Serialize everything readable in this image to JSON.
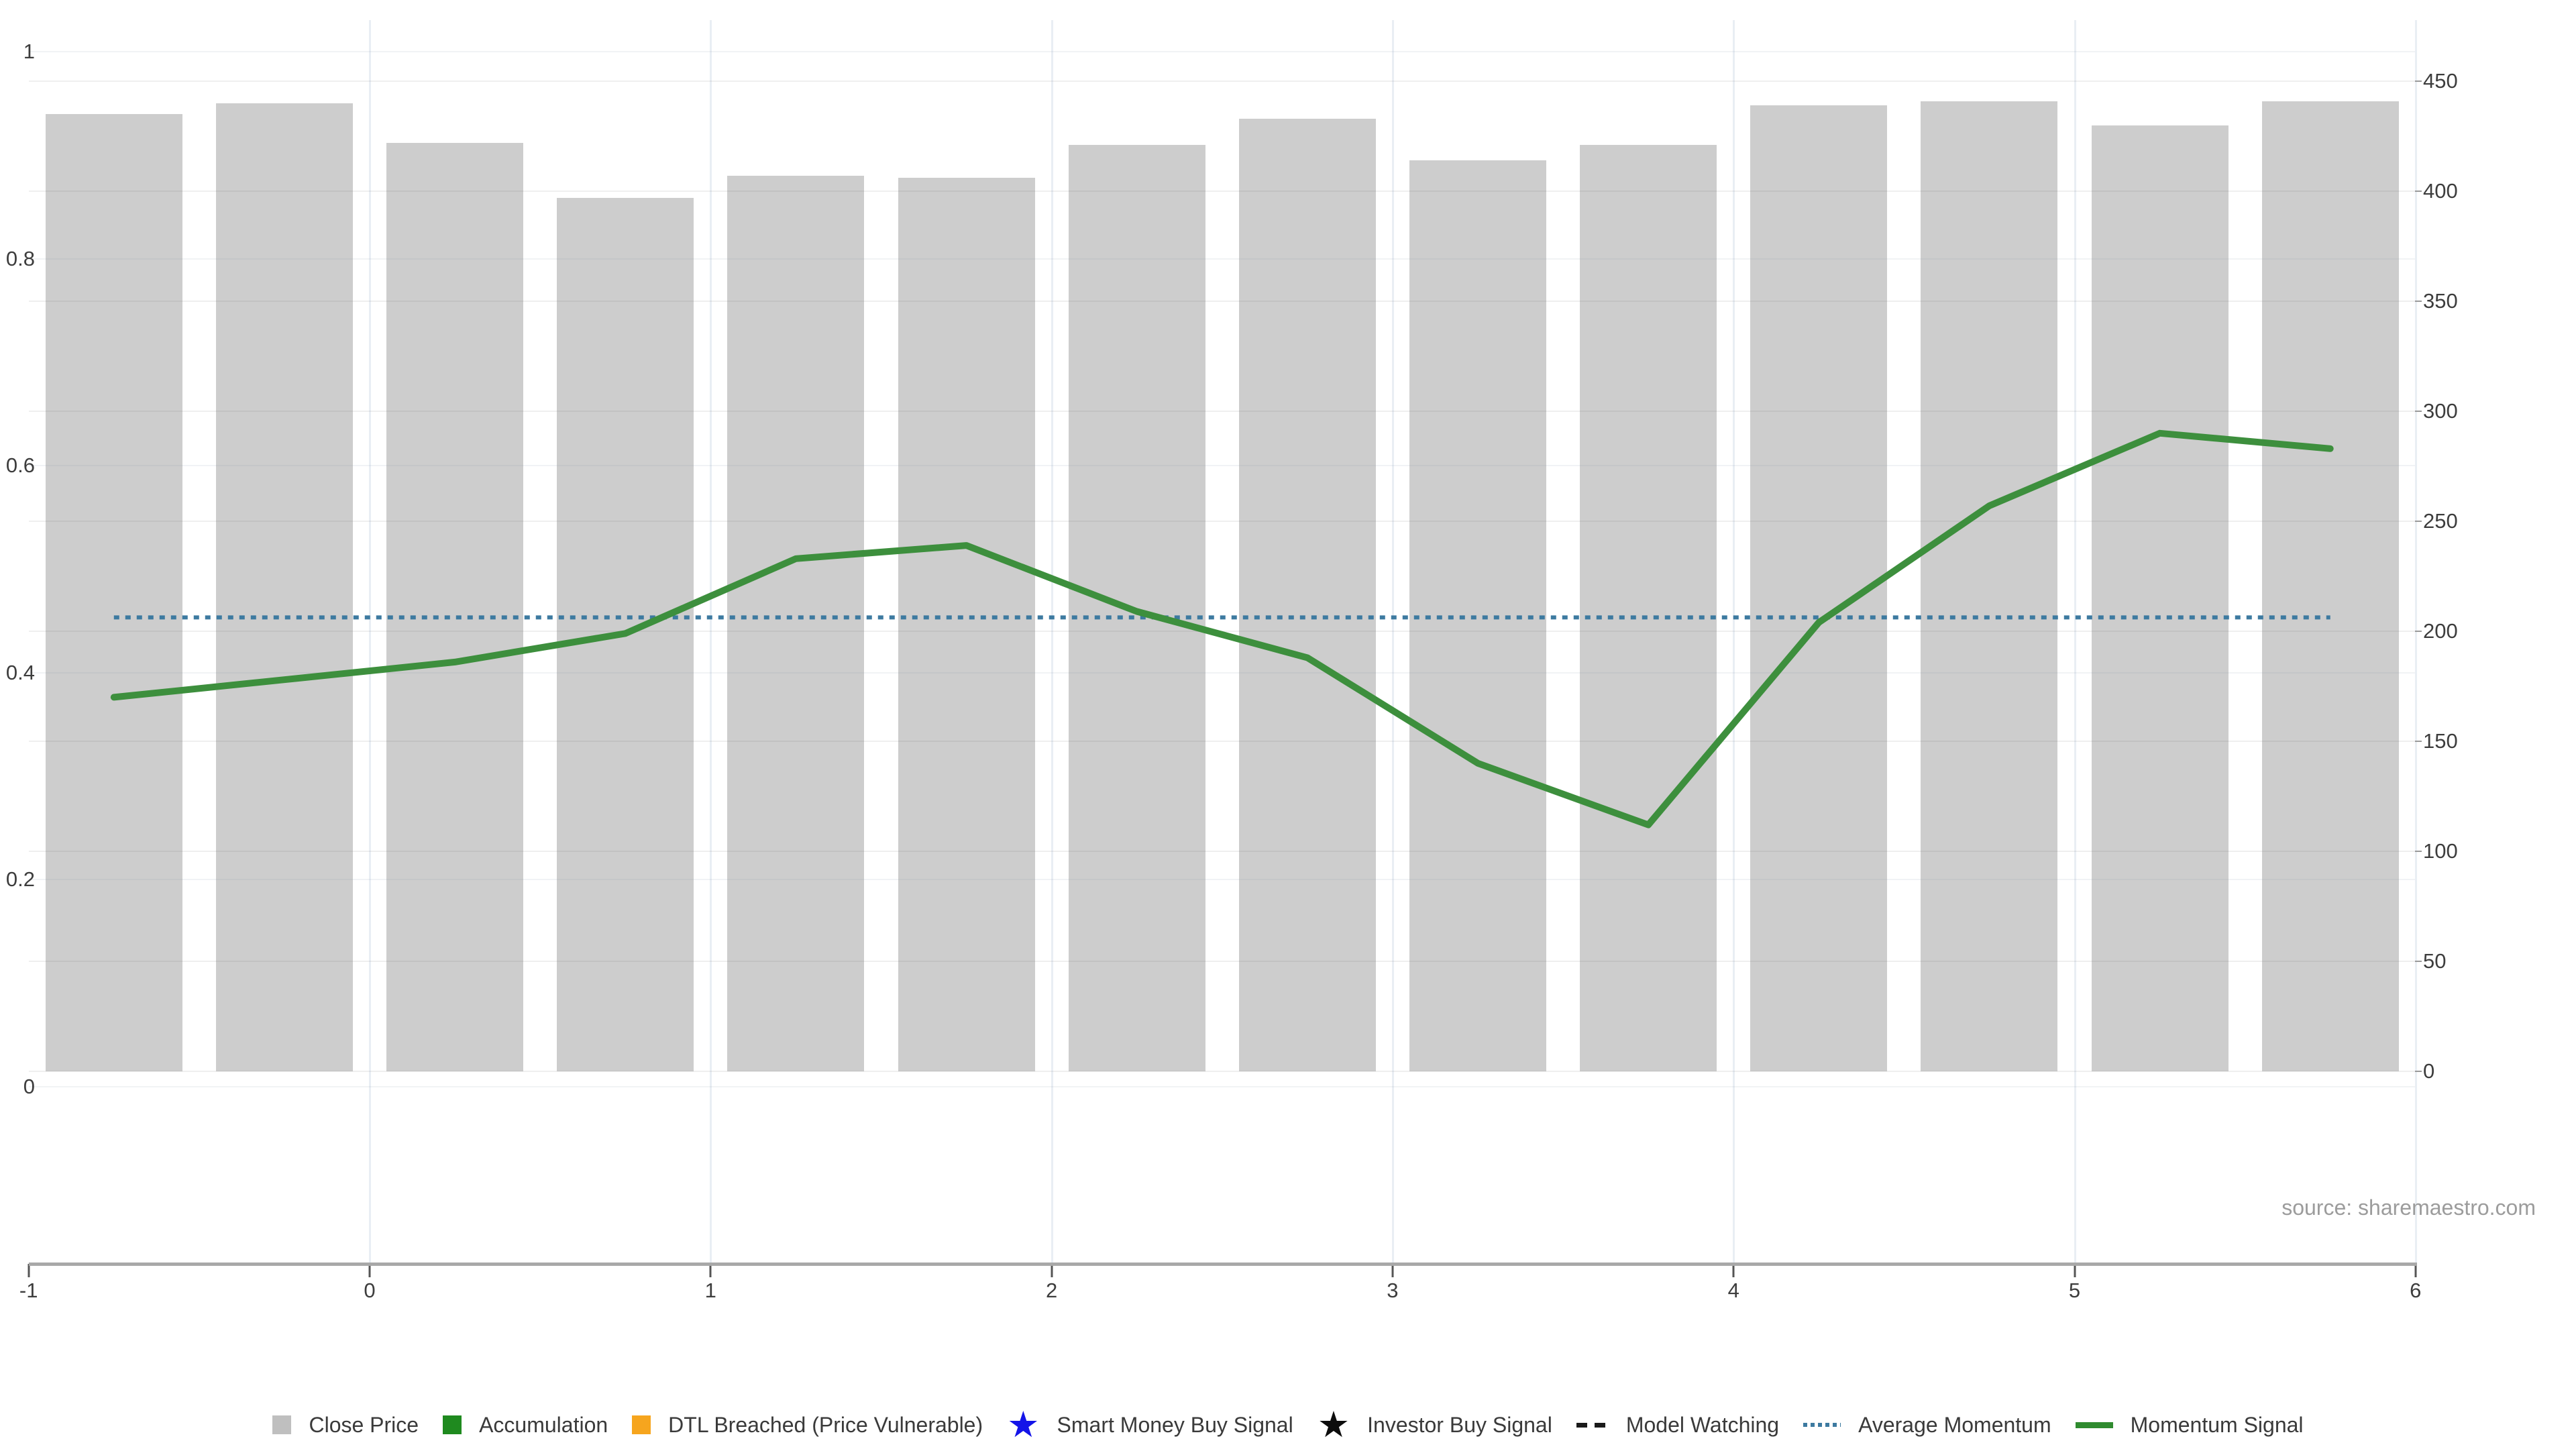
{
  "source_note": "source: sharemaestro.com",
  "chart_data": {
    "type": "bar",
    "title": "",
    "x": [
      -0.75,
      -0.25,
      0.25,
      0.75,
      1.25,
      1.75,
      2.25,
      2.75,
      3.25,
      3.75,
      4.25,
      4.75,
      5.25,
      5.75
    ],
    "series": [
      {
        "name": "Close Price",
        "kind": "bar",
        "axis": "right",
        "color": "#cdcdcd",
        "values": [
          435,
          440,
          422,
          397,
          407,
          406,
          421,
          433,
          414,
          421,
          439,
          441,
          430,
          441
        ]
      },
      {
        "name": "Momentum Signal",
        "kind": "line",
        "axis": "right",
        "color": "#3d8f3d",
        "values": [
          170,
          178,
          186,
          199,
          233,
          239,
          209,
          188,
          140,
          112,
          204,
          257,
          290,
          283
        ]
      },
      {
        "name": "Average Momentum",
        "kind": "dotted-line",
        "axis": "right",
        "color": "#3d7aa0",
        "constant": 206.3
      }
    ],
    "x_axis": {
      "range": [
        -1,
        6
      ],
      "ticks": [
        {
          "v": -1,
          "label": "-1"
        },
        {
          "v": 0,
          "label": "0"
        },
        {
          "v": 1,
          "label": "1"
        },
        {
          "v": 2,
          "label": "2"
        },
        {
          "v": 3,
          "label": "3"
        },
        {
          "v": 4,
          "label": "4"
        },
        {
          "v": 5,
          "label": "5"
        },
        {
          "v": 6,
          "label": "6"
        }
      ]
    },
    "left_axis": {
      "range": [
        0,
        1
      ],
      "ticks": [
        {
          "v": 0,
          "label": "0"
        },
        {
          "v": 0.2,
          "label": "0.2"
        },
        {
          "v": 0.4,
          "label": "0.4"
        },
        {
          "v": 0.6,
          "label": "0.6"
        },
        {
          "v": 0.8,
          "label": "0.8"
        },
        {
          "v": 1,
          "label": "1"
        }
      ]
    },
    "right_axis": {
      "range": [
        0,
        450
      ],
      "ticks": [
        {
          "v": 0,
          "label": "0"
        },
        {
          "v": 50,
          "label": "50"
        },
        {
          "v": 100,
          "label": "100"
        },
        {
          "v": 150,
          "label": "150"
        },
        {
          "v": 200,
          "label": "200"
        },
        {
          "v": 250,
          "label": "250"
        },
        {
          "v": 300,
          "label": "300"
        },
        {
          "v": 350,
          "label": "350"
        },
        {
          "v": 400,
          "label": "400"
        },
        {
          "v": 450,
          "label": "450"
        }
      ]
    },
    "grid": true,
    "legend_position": "bottom-center",
    "legend": [
      {
        "marker": "square",
        "color": "#bfbfbf",
        "label": "Close Price"
      },
      {
        "marker": "square",
        "color": "#1f8a1f",
        "label": "Accumulation"
      },
      {
        "marker": "square",
        "color": "#f6a51e",
        "label": "DTL Breached (Price Vulnerable)"
      },
      {
        "marker": "star",
        "color": "#1414e8",
        "label": "Smart Money Buy Signal"
      },
      {
        "marker": "star",
        "color": "#0d0d0d",
        "label": "Investor Buy Signal"
      },
      {
        "marker": "dashes",
        "color": "#1a1a1a",
        "label": "Model Watching"
      },
      {
        "marker": "dots",
        "color": "#3d7aa0",
        "label": "Average Momentum"
      },
      {
        "marker": "line",
        "color": "#2f8b2f",
        "label": "Momentum Signal"
      }
    ]
  }
}
